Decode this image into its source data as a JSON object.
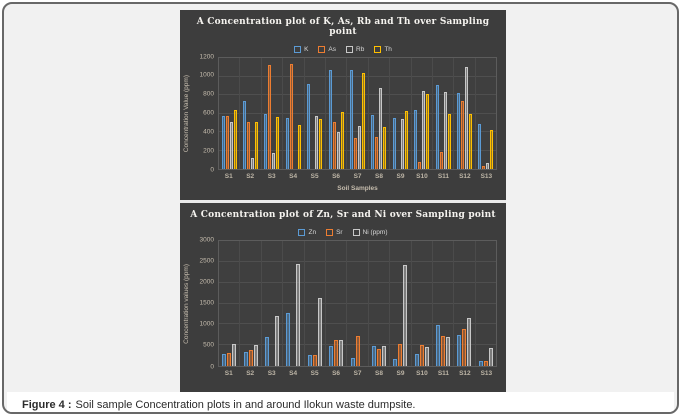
{
  "caption": {
    "prefix": "Figure 4 :",
    "text": "Soil sample Concentration plots in and around Ilokun waste dumpsite."
  },
  "colors": {
    "panel_background": "#3d3d3d",
    "card_background": "#f1f1f1",
    "series_blue": "#5B9BD5",
    "series_orange": "#ED7D31",
    "series_gray": "#C8C8C8",
    "series_yellow": "#FFC000"
  },
  "chart_data": [
    {
      "type": "bar",
      "title": "A Concentration plot of K, As, Rb and Th over Sampling point",
      "ylabel": "Concentration Value (ppm)",
      "xlabel": "Soil Samples",
      "ylim": [
        0,
        1200
      ],
      "ystep": 200,
      "grid": true,
      "legend_position": "top",
      "categories": [
        "S1",
        "S2",
        "S3",
        "S4",
        "S5",
        "S6",
        "S7",
        "S8",
        "S9",
        "S10",
        "S11",
        "S12",
        "S13"
      ],
      "series": [
        {
          "name": "K",
          "color": "#5B9BD5",
          "values": [
            570,
            740,
            600,
            550,
            920,
            1070,
            1070,
            580,
            550,
            640,
            910,
            820,
            490
          ]
        },
        {
          "name": "As",
          "color": "#ED7D31",
          "values": [
            575,
            510,
            1120,
            1130,
            0,
            510,
            330,
            350,
            0,
            80,
            180,
            740,
            30
          ]
        },
        {
          "name": "Rb",
          "color": "#C8C8C8",
          "values": [
            510,
            120,
            170,
            0,
            570,
            400,
            460,
            880,
            540,
            840,
            830,
            1100,
            70
          ]
        },
        {
          "name": "Th",
          "color": "#FFC000",
          "values": [
            640,
            510,
            560,
            480,
            540,
            620,
            1040,
            450,
            630,
            810,
            590,
            600,
            420
          ]
        }
      ]
    },
    {
      "type": "bar",
      "title": "A Concentration plot of Zn, Sr and Ni over Sampling point",
      "ylabel": "Concentration values (ppm)",
      "xlabel": "",
      "ylim": [
        0,
        3000
      ],
      "ystep": 500,
      "grid": true,
      "legend_position": "top",
      "categories": [
        "S1",
        "S2",
        "S3",
        "S4",
        "S5",
        "S6",
        "S7",
        "S8",
        "S9",
        "S10",
        "S11",
        "S12",
        "S13"
      ],
      "series": [
        {
          "name": "Zn",
          "color": "#5B9BD5",
          "values": [
            300,
            330,
            700,
            1270,
            270,
            470,
            190,
            470,
            170,
            290,
            980,
            750,
            120
          ]
        },
        {
          "name": "Sr",
          "color": "#ED7D31",
          "values": [
            320,
            390,
            0,
            0,
            270,
            630,
            730,
            420,
            540,
            500,
            730,
            900,
            110
          ]
        },
        {
          "name": "Ni (ppm)",
          "color": "#C8C8C8",
          "values": [
            540,
            500,
            1200,
            2450,
            1630,
            620,
            0,
            480,
            2430,
            460,
            690,
            1150,
            440
          ]
        }
      ]
    }
  ]
}
